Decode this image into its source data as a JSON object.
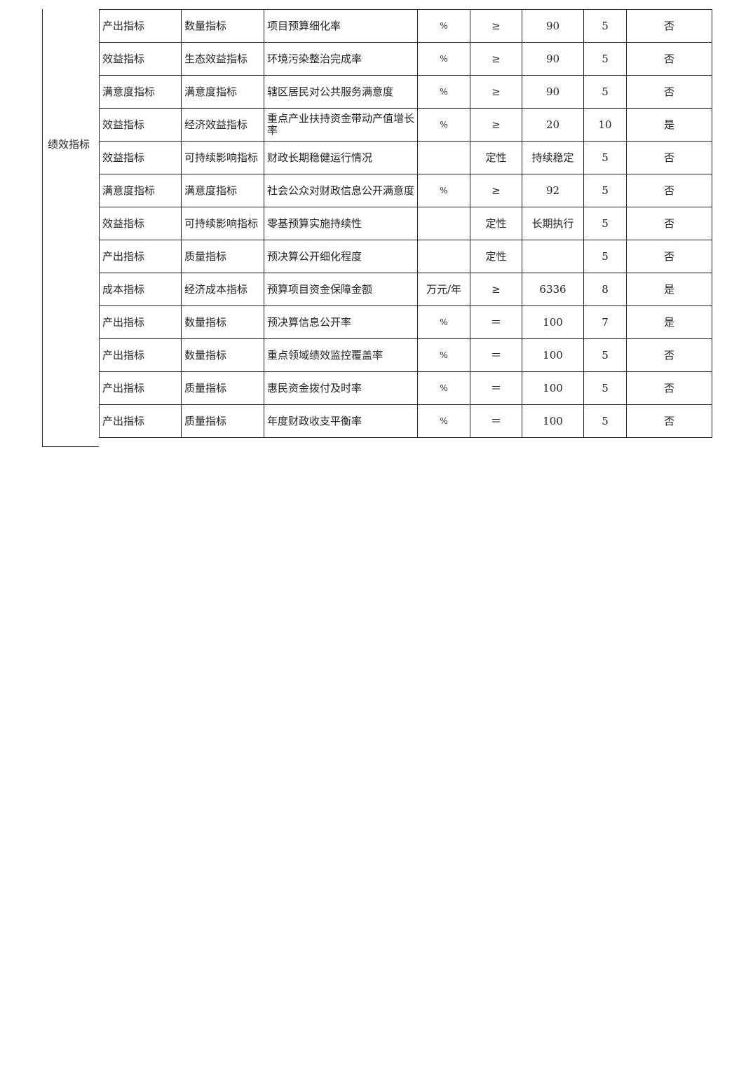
{
  "group_label": "绩效指标",
  "rows": [
    {
      "level1": "产出指标",
      "level2": "数量指标",
      "name": "项目预算细化率",
      "unit": "%",
      "op": "≥",
      "target": "90",
      "weight": "5",
      "core": "否"
    },
    {
      "level1": "效益指标",
      "level2": "生态效益指标",
      "name": "环境污染整治完成率",
      "unit": "%",
      "op": "≥",
      "target": "90",
      "weight": "5",
      "core": "否"
    },
    {
      "level1": "满意度指标",
      "level2": "满意度指标",
      "name": "辖区居民对公共服务满意度",
      "unit": "%",
      "op": "≥",
      "target": "90",
      "weight": "5",
      "core": "否"
    },
    {
      "level1": "效益指标",
      "level2": "经济效益指标",
      "name": "重点产业扶持资金带动产值增长率",
      "unit": "%",
      "op": "≥",
      "target": "20",
      "weight": "10",
      "core": "是"
    },
    {
      "level1": "效益指标",
      "level2": "可持续影响指标",
      "name": "财政长期稳健运行情况",
      "unit": "",
      "op": "定性",
      "target": "持续稳定",
      "weight": "5",
      "core": "否"
    },
    {
      "level1": "满意度指标",
      "level2": "满意度指标",
      "name": "社会公众对财政信息公开满意度",
      "unit": "%",
      "op": "≥",
      "target": "92",
      "weight": "5",
      "core": "否"
    },
    {
      "level1": "效益指标",
      "level2": "可持续影响指标",
      "name": "零基预算实施持续性",
      "unit": "",
      "op": "定性",
      "target": "长期执行",
      "weight": "5",
      "core": "否"
    },
    {
      "level1": "产出指标",
      "level2": "质量指标",
      "name": "预决算公开细化程度",
      "unit": "",
      "op": "定性",
      "target": "",
      "weight": "5",
      "core": "否"
    },
    {
      "level1": "成本指标",
      "level2": "经济成本指标",
      "name": "预算项目资金保障金额",
      "unit": "万元/年",
      "op": "≥",
      "target": "6336",
      "weight": "8",
      "core": "是"
    },
    {
      "level1": "产出指标",
      "level2": "数量指标",
      "name": "预决算信息公开率",
      "unit": "%",
      "op": "＝",
      "target": "100",
      "weight": "7",
      "core": "是"
    },
    {
      "level1": "产出指标",
      "level2": "数量指标",
      "name": "重点领域绩效监控覆盖率",
      "unit": "%",
      "op": "＝",
      "target": "100",
      "weight": "5",
      "core": "否"
    },
    {
      "level1": "产出指标",
      "level2": "质量指标",
      "name": "惠民资金拨付及时率",
      "unit": "%",
      "op": "＝",
      "target": "100",
      "weight": "5",
      "core": "否"
    },
    {
      "level1": "产出指标",
      "level2": "质量指标",
      "name": "年度财政收支平衡率",
      "unit": "%",
      "op": "＝",
      "target": "100",
      "weight": "5",
      "core": "否"
    }
  ]
}
